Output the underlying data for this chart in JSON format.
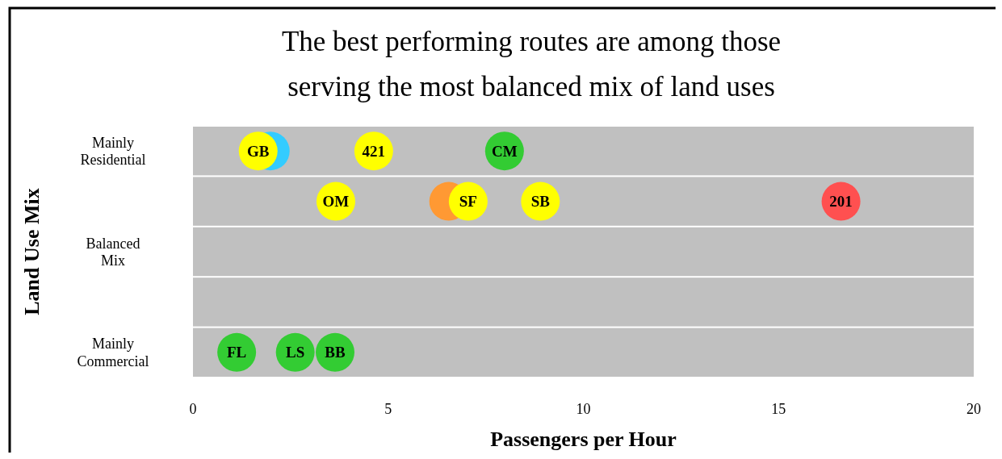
{
  "chart_data": {
    "type": "scatter",
    "orientation": "horizontal",
    "title": "The best performing routes are among those serving the most balanced mix of land uses",
    "xlabel": "Passengers per Hour",
    "ylabel": "Land Use Mix",
    "categories": [
      "Mainly Residential",
      null,
      "Balanced Mix",
      null,
      "Mainly Commercial"
    ],
    "xlim": [
      0,
      20
    ],
    "xticks": [
      0,
      5,
      10,
      15,
      20
    ],
    "marker": "circle",
    "series": [
      {
        "color": "#33ccff",
        "values": [
          1.98,
          null,
          null,
          null,
          null
        ]
      },
      {
        "name": "GB",
        "color": "#ffff00",
        "values": [
          1.67,
          null,
          null,
          null,
          null
        ]
      },
      {
        "name": "421",
        "color": "#ffff00",
        "values": [
          4.63,
          null,
          null,
          null,
          null
        ]
      },
      {
        "name": "CM",
        "color": "#33cc33",
        "values": [
          7.98,
          null,
          null,
          null,
          null
        ]
      },
      {
        "name": "OM",
        "color": "#ffff00",
        "values": [
          null,
          3.66,
          null,
          null,
          null
        ]
      },
      {
        "color": "#ff9933",
        "values": [
          null,
          6.55,
          null,
          null,
          null
        ]
      },
      {
        "name": "SF",
        "color": "#ffff00",
        "values": [
          null,
          7.05,
          null,
          null,
          null
        ]
      },
      {
        "name": "SB",
        "color": "#ffff00",
        "values": [
          null,
          8.9,
          null,
          null,
          null
        ]
      },
      {
        "name": "201",
        "color": "#ff5050",
        "values": [
          null,
          16.6,
          null,
          null,
          null
        ]
      },
      {
        "name": "FL",
        "color": "#33cc33",
        "values": [
          null,
          null,
          null,
          null,
          1.12
        ]
      },
      {
        "name": "LS",
        "color": "#33cc33",
        "values": [
          null,
          null,
          null,
          null,
          2.62
        ]
      },
      {
        "name": "BB",
        "color": "#33cc33",
        "values": [
          null,
          null,
          null,
          null,
          3.64
        ]
      }
    ]
  }
}
